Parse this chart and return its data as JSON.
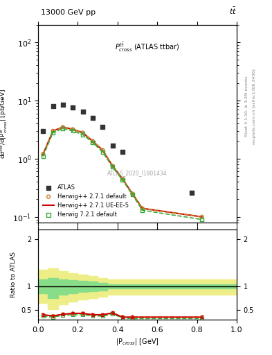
{
  "title_left": "13000 GeV pp",
  "title_right": "tt̅",
  "plot_label": "P$^{t\\bar{t}}_{cross}$ (ATLAS ttbar)",
  "watermark": "ATLAS_2020_I1801434",
  "right_label": "Rivet 3.1.10, ≥ 3.2M events",
  "right_label2": "mcplots.cern.ch [arXiv:1306.3436]",
  "xlabel": "|P$_{cross}$| [GeV]",
  "ylabel": "d$\\sigma^{nd}$/d|P$^{ttbar}_{cross}$| [pb/GeV]",
  "ylabel_ratio": "Ratio to ATLAS",
  "xlim": [
    0,
    1.0
  ],
  "ylim_log": [
    0.08,
    200
  ],
  "ylim_ratio": [
    0.3,
    2.2
  ],
  "atlas_x": [
    0.025,
    0.075,
    0.125,
    0.175,
    0.225,
    0.275,
    0.325,
    0.375,
    0.425,
    0.475,
    0.525,
    0.575,
    0.625,
    0.675,
    0.725,
    0.775,
    0.875
  ],
  "atlas_y": [
    3.0,
    8.0,
    8.5,
    7.5,
    6.5,
    5.0,
    3.5,
    1.7,
    1.3,
    0.0,
    0.0,
    0.0,
    0.0,
    0.0,
    0.0,
    0.26,
    0.0
  ],
  "hw271_x": [
    0.025,
    0.075,
    0.125,
    0.175,
    0.225,
    0.275,
    0.325,
    0.375,
    0.425,
    0.475,
    0.525,
    0.825
  ],
  "hw271_y": [
    1.2,
    3.0,
    3.5,
    3.2,
    2.8,
    2.0,
    1.4,
    0.75,
    0.45,
    0.25,
    0.14,
    0.1
  ],
  "hw271ue_x": [
    0.025,
    0.075,
    0.125,
    0.175,
    0.225,
    0.275,
    0.325,
    0.375,
    0.425,
    0.475,
    0.525,
    0.825
  ],
  "hw271ue_y": [
    1.2,
    3.0,
    3.5,
    3.2,
    2.8,
    2.0,
    1.4,
    0.75,
    0.45,
    0.25,
    0.14,
    0.1
  ],
  "hw721_x": [
    0.025,
    0.075,
    0.125,
    0.175,
    0.225,
    0.275,
    0.325,
    0.375,
    0.425,
    0.475,
    0.525,
    0.825
  ],
  "hw721_y": [
    1.1,
    2.8,
    3.3,
    3.0,
    2.6,
    1.9,
    1.3,
    0.72,
    0.43,
    0.24,
    0.13,
    0.09
  ],
  "ratio_hw271_x": [
    0.025,
    0.075,
    0.125,
    0.175,
    0.225,
    0.275,
    0.325,
    0.375,
    0.425,
    0.475,
    0.825
  ],
  "ratio_hw271_y": [
    0.4,
    0.375,
    0.41,
    0.43,
    0.43,
    0.4,
    0.4,
    0.44,
    0.35,
    0.35,
    0.35
  ],
  "ratio_hw271ue_x": [
    0.025,
    0.075,
    0.125,
    0.175,
    0.225,
    0.275,
    0.325,
    0.375,
    0.425,
    0.475,
    0.825
  ],
  "ratio_hw271ue_y": [
    0.4,
    0.375,
    0.41,
    0.43,
    0.43,
    0.4,
    0.4,
    0.44,
    0.35,
    0.35,
    0.35
  ],
  "ratio_hw721_x": [
    0.025,
    0.075,
    0.125,
    0.175,
    0.225,
    0.275,
    0.325,
    0.375,
    0.425,
    0.475,
    0.825
  ],
  "ratio_hw721_y": [
    0.37,
    0.35,
    0.39,
    0.4,
    0.4,
    0.38,
    0.37,
    0.42,
    0.33,
    0.32,
    0.32
  ],
  "band_green_x": [
    0.0,
    0.05,
    0.1,
    0.15,
    0.2,
    0.25,
    0.3,
    0.35,
    0.5,
    1.0
  ],
  "band_green_lo": [
    0.85,
    0.75,
    0.82,
    0.85,
    0.88,
    0.9,
    0.92,
    0.95,
    0.95,
    0.95
  ],
  "band_green_hi": [
    1.15,
    1.18,
    1.15,
    1.13,
    1.12,
    1.1,
    1.08,
    1.05,
    1.05,
    1.05
  ],
  "band_yellow_x": [
    0.0,
    0.05,
    0.1,
    0.15,
    0.2,
    0.25,
    0.3,
    0.35,
    0.5,
    1.0
  ],
  "band_yellow_lo": [
    0.65,
    0.52,
    0.62,
    0.68,
    0.72,
    0.75,
    0.78,
    0.82,
    0.82,
    0.82
  ],
  "band_yellow_hi": [
    1.35,
    1.38,
    1.32,
    1.28,
    1.25,
    1.22,
    1.18,
    1.15,
    1.15,
    1.15
  ],
  "color_atlas": "#333333",
  "color_hw271": "#cc7722",
  "color_hw271ue": "#cc0000",
  "color_hw721": "#33aa33",
  "color_band_green": "#88dd88",
  "color_band_yellow": "#eeee88"
}
